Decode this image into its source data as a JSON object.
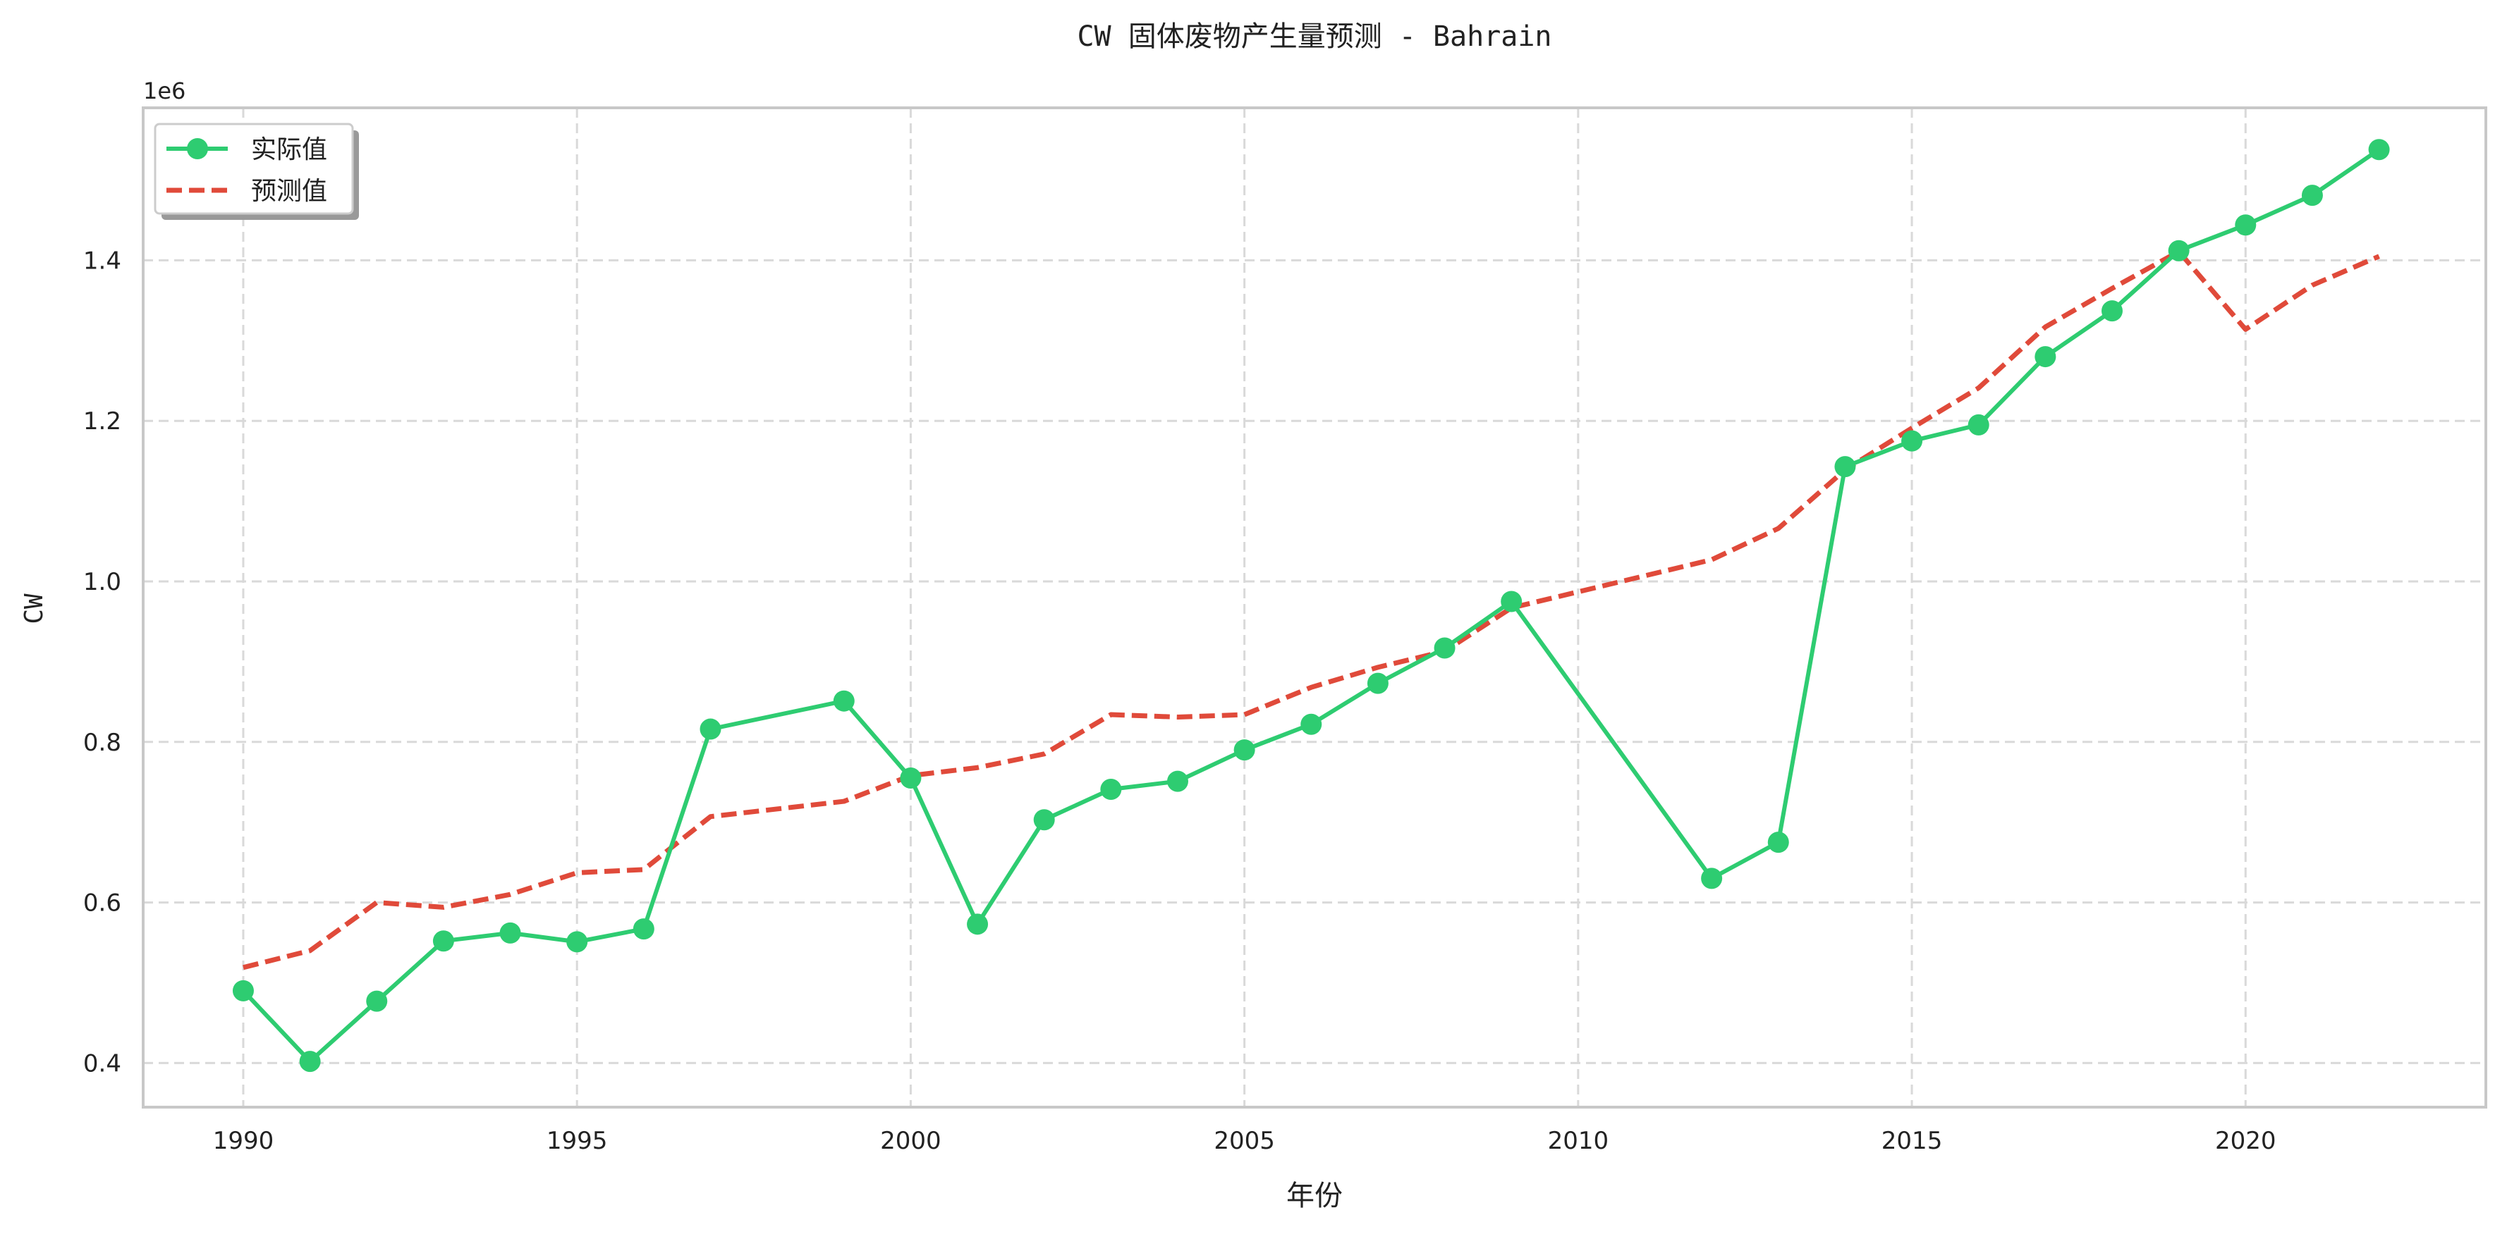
{
  "chart_data": {
    "type": "line",
    "title": "CW 固体废物产生量预测 - Bahrain",
    "xlabel": "年份",
    "ylabel": "CW",
    "y_multiplier_label": "1e6",
    "xlim": [
      1988.5,
      2023.6
    ],
    "ylim": [
      345000,
      1590000
    ],
    "x_ticks": [
      1990,
      1995,
      2000,
      2005,
      2010,
      2015,
      2020
    ],
    "y_ticks": [
      400000,
      600000,
      800000,
      1000000,
      1200000,
      1400000
    ],
    "y_tick_labels": [
      "0.4",
      "0.6",
      "0.8",
      "1.0",
      "1.2",
      "1.4"
    ],
    "grid": true,
    "legend_position": "top-left",
    "series": [
      {
        "name": "实际值",
        "color": "#2ecc71",
        "style": "solid-markers",
        "x": [
          1990,
          1991,
          1992,
          1993,
          1994,
          1995,
          1996,
          1997,
          1999,
          2000,
          2001,
          2002,
          2003,
          2004,
          2005,
          2006,
          2007,
          2008,
          2009,
          2012,
          2013,
          2014,
          2015,
          2016,
          2017,
          2018,
          2019,
          2020,
          2021,
          2022
        ],
        "values": [
          490000,
          402000,
          477000,
          552000,
          562000,
          551000,
          567000,
          816000,
          851000,
          755000,
          573000,
          703000,
          741000,
          751000,
          790000,
          822000,
          873000,
          917000,
          975000,
          630000,
          675000,
          1143000,
          1175000,
          1195000,
          1280000,
          1337000,
          1412000,
          1444000,
          1481000,
          1538000
        ]
      },
      {
        "name": "预测值",
        "color": "#e04a3a",
        "style": "dashed",
        "x": [
          1990,
          1991,
          1992,
          1993,
          1994,
          1995,
          1996,
          1997,
          1999,
          2000,
          2001,
          2002,
          2003,
          2004,
          2005,
          2006,
          2007,
          2008,
          2009,
          2012,
          2013,
          2014,
          2015,
          2016,
          2017,
          2018,
          2019,
          2020,
          2021,
          2022
        ],
        "values": [
          519000,
          540000,
          600000,
          594000,
          610000,
          637000,
          641000,
          707000,
          726000,
          758000,
          768000,
          785000,
          834000,
          831000,
          834000,
          868000,
          893000,
          913000,
          967000,
          1027000,
          1066000,
          1139000,
          1191000,
          1241000,
          1317000,
          1365000,
          1411000,
          1314000,
          1369000,
          1405000
        ]
      }
    ]
  }
}
